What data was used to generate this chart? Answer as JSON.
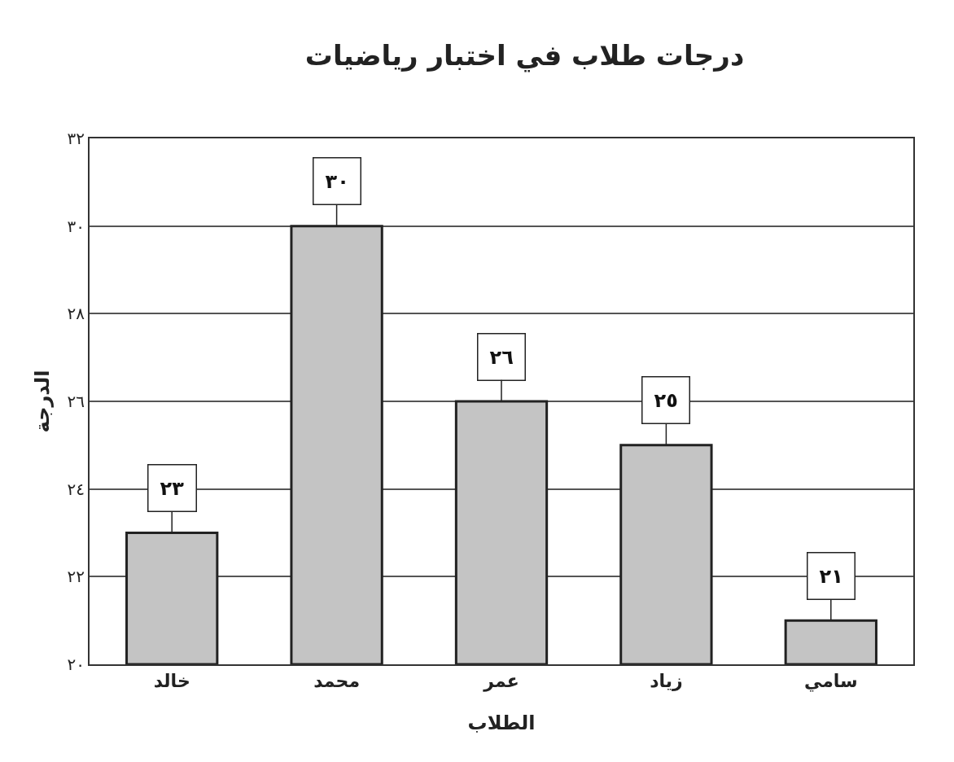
{
  "chart_data": {
    "type": "bar",
    "title": "درجات طلاب في اختبار رياضيات",
    "xlabel": "الطلاب",
    "ylabel": "الدرجة",
    "categories": [
      "خالد",
      "محمد",
      "عمر",
      "زياد",
      "سامي"
    ],
    "values": [
      23,
      30,
      26,
      25,
      21
    ],
    "value_labels": [
      "٢٣",
      "٣٠",
      "٢٦",
      "٢٥",
      "٢١"
    ],
    "color": "#c4c4c4",
    "ylim": [
      20,
      32
    ],
    "yticks": [
      {
        "value": 20,
        "label": "٢٠"
      },
      {
        "value": 22,
        "label": "٢٢"
      },
      {
        "value": 24,
        "label": "٢٤"
      },
      {
        "value": 26,
        "label": "٢٦"
      },
      {
        "value": 28,
        "label": "٢٨"
      },
      {
        "value": 30,
        "label": "٣٠"
      },
      {
        "value": 32,
        "label": "٣٢"
      }
    ],
    "grid": "y"
  }
}
